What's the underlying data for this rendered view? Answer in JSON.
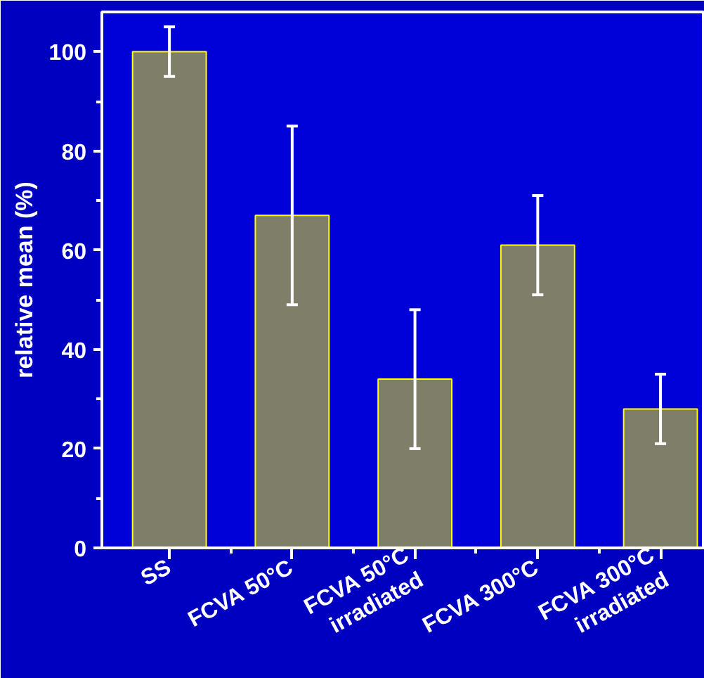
{
  "chart_data": {
    "type": "bar",
    "ylabel": "relative mean (%)",
    "categories": [
      "SS",
      "FCVA 50°C",
      "FCVA 50°C\nirradiated",
      "FCVA 300°C",
      "FCVA 300°C\nirradiated"
    ],
    "values": [
      100,
      67,
      34,
      61,
      28
    ],
    "errors": [
      [
        95,
        105
      ],
      [
        49,
        85
      ],
      [
        20,
        48
      ],
      [
        51,
        71
      ],
      [
        21,
        35
      ]
    ],
    "color": "#7f7f69",
    "ylim": [
      0,
      108
    ],
    "yticks": [
      0,
      20,
      40,
      60,
      80,
      100
    ],
    "grid": false
  }
}
